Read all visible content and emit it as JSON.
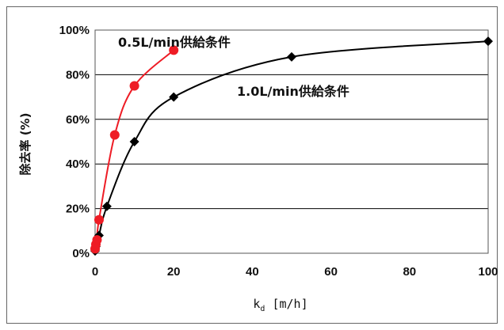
{
  "chart_data": {
    "type": "line",
    "ylabel": "除去率 (%)",
    "xlabel": {
      "main": "k",
      "sub": "d",
      "unit": " [m/h]"
    },
    "xlim": [
      0,
      100
    ],
    "ylim": [
      0,
      100
    ],
    "xticks": [
      "0",
      "20",
      "40",
      "60",
      "80",
      "100"
    ],
    "xtick_values": [
      0,
      20,
      40,
      60,
      80,
      100
    ],
    "yticks": [
      "0%",
      "20%",
      "40%",
      "60%",
      "80%",
      "100%"
    ],
    "ytick_values": [
      0,
      20,
      40,
      60,
      80,
      100
    ],
    "grid": "horizontal",
    "series": [
      {
        "name": "0.5L/min供給条件",
        "color": "#ee1c25",
        "marker": "circle",
        "x": [
          0,
          0.2,
          0.5,
          1,
          5,
          10,
          20
        ],
        "y": [
          2,
          4,
          6,
          15,
          53,
          75,
          91
        ]
      },
      {
        "name": "1.0L/min供給条件",
        "color": "#000000",
        "marker": "diamond",
        "x": [
          0,
          0.2,
          1,
          3,
          10,
          20,
          50,
          100
        ],
        "y": [
          1,
          3,
          8,
          21,
          50,
          70,
          88,
          95
        ]
      }
    ]
  }
}
